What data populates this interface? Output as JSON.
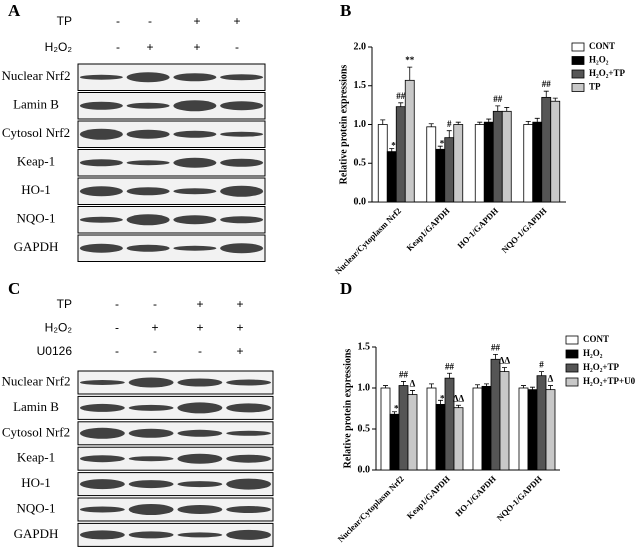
{
  "blots": [
    {
      "panel": "A",
      "treatments": [
        {
          "name": "TP",
          "signs": [
            "-",
            "-",
            "+",
            "+"
          ]
        },
        {
          "name": "H₂O₂",
          "signs": [
            "-",
            "+",
            "+",
            "-"
          ]
        }
      ],
      "bands": [
        "Nuclear Nrf2",
        "Lamin B",
        "Cytosol Nrf2",
        "Keap-1",
        "HO-1",
        "NQO-1",
        "GAPDH"
      ]
    },
    {
      "panel": "C",
      "treatments": [
        {
          "name": "TP",
          "signs": [
            "-",
            "-",
            "+",
            "+"
          ]
        },
        {
          "name": "H₂O₂",
          "signs": [
            "-",
            "+",
            "+",
            "+"
          ]
        },
        {
          "name": "U0126",
          "signs": [
            "-",
            "-",
            "-",
            "+"
          ]
        }
      ],
      "bands": [
        "Nuclear Nrf2",
        "Lamin B",
        "Cytosol Nrf2",
        "Keap-1",
        "HO-1",
        "NQO-1",
        "GAPDH"
      ]
    }
  ],
  "chart_data": [
    {
      "type": "bar",
      "panel": "B",
      "ylabel": "Relative protein expressions",
      "categories": [
        "Nuclear/Cytoplasm Nrf2",
        "Keap1/GAPDH",
        "HO-1/GAPDH",
        "NQO-1/GAPDH"
      ],
      "series": [
        {
          "name": "CONT",
          "color": "#ffffff",
          "values": [
            1.0,
            0.97,
            1.0,
            1.0
          ],
          "errors": [
            0.06,
            0.04,
            0.03,
            0.04
          ],
          "labels": [
            null,
            null,
            null,
            null
          ]
        },
        {
          "name": "H₂O₂",
          "color": "#000000",
          "values": [
            0.65,
            0.68,
            1.03,
            1.03
          ],
          "errors": [
            0.04,
            0.04,
            0.04,
            0.05
          ],
          "labels": [
            "**",
            "**",
            null,
            null
          ]
        },
        {
          "name": "H₂O₂+TP",
          "color": "#555555",
          "values": [
            1.23,
            0.83,
            1.17,
            1.35
          ],
          "errors": [
            0.05,
            0.09,
            0.07,
            0.08
          ],
          "labels": [
            "##",
            "#",
            "##",
            "##"
          ]
        },
        {
          "name": "TP",
          "color": "#c8c8c8",
          "values": [
            1.57,
            1.0,
            1.17,
            1.3
          ],
          "errors": [
            0.17,
            0.03,
            0.05,
            0.04
          ],
          "labels": [
            "**",
            null,
            null,
            null
          ]
        }
      ],
      "ylim": [
        0,
        2
      ],
      "yticks": [
        {
          "value": 0,
          "label": "0.0"
        },
        {
          "value": 0.5,
          "label": "0.5"
        },
        {
          "value": 1,
          "label": "1.0"
        },
        {
          "value": 1.5,
          "label": "1.5"
        },
        {
          "value": 2,
          "label": "2.0"
        }
      ]
    },
    {
      "type": "bar",
      "panel": "D",
      "ylabel": "Relative protein expressions",
      "categories": [
        "Nuclear/Cytoplasm Nrf2",
        "Keap1/GAPDH",
        "HO-1/GAPDH",
        "NQO-1/GAPDH"
      ],
      "series": [
        {
          "name": "CONT",
          "color": "#ffffff",
          "values": [
            1.0,
            1.0,
            1.0,
            1.0
          ],
          "errors": [
            0.03,
            0.05,
            0.04,
            0.03
          ],
          "labels": [
            null,
            null,
            null,
            null
          ]
        },
        {
          "name": "H₂O₂",
          "color": "#000000",
          "values": [
            0.68,
            0.8,
            1.02,
            0.98
          ],
          "errors": [
            0.03,
            0.05,
            0.03,
            0.03
          ],
          "labels": [
            "**",
            "**",
            null,
            null
          ]
        },
        {
          "name": "H₂O₂+TP",
          "color": "#555555",
          "values": [
            1.03,
            1.12,
            1.35,
            1.15
          ],
          "errors": [
            0.05,
            0.06,
            0.06,
            0.05
          ],
          "labels": [
            "##",
            "##",
            "##",
            "#"
          ]
        },
        {
          "name": "H₂O₂+TP+U0",
          "color": "#c8c8c8",
          "values": [
            0.92,
            0.76,
            1.2,
            0.98
          ],
          "errors": [
            0.05,
            0.03,
            0.05,
            0.05
          ],
          "labels": [
            "Δ",
            "ΔΔ",
            "ΔΔ",
            "Δ"
          ]
        }
      ],
      "ylim": [
        0,
        1.5
      ],
      "yticks": [
        {
          "value": 0,
          "label": "0.0"
        },
        {
          "value": 0.5,
          "label": "0.5"
        },
        {
          "value": 1,
          "label": "1.0"
        },
        {
          "value": 1.5,
          "label": "1.5"
        }
      ]
    }
  ]
}
